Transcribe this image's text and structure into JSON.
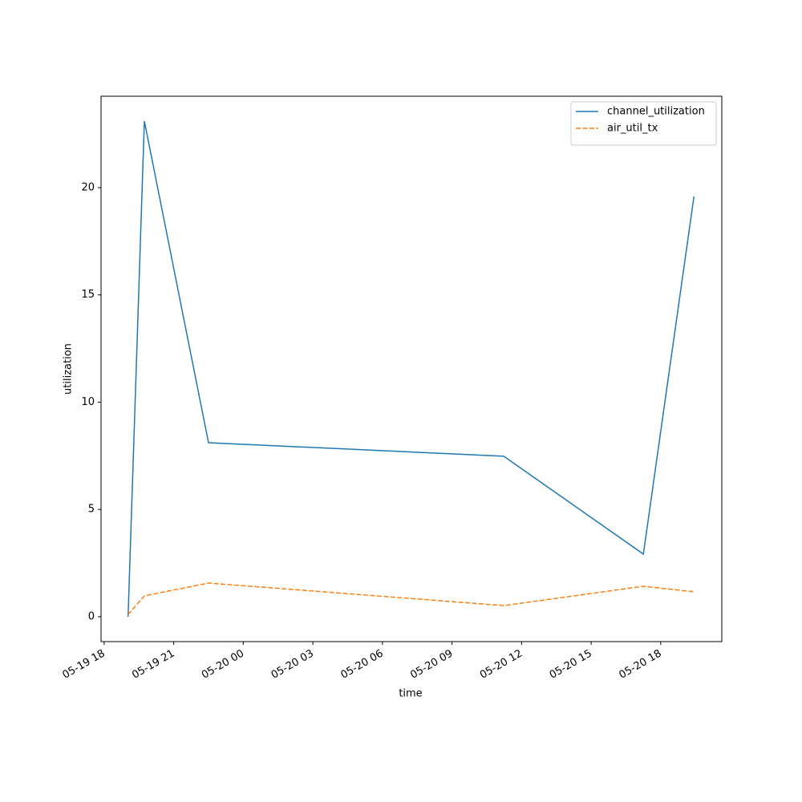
{
  "chart_data": {
    "type": "line",
    "x": [
      "05-19 19:02",
      "05-19 19:44",
      "05-19 22:30",
      "05-20 11:14",
      "05-20 17:15",
      "05-20 19:26"
    ],
    "series": [
      {
        "name": "channel_utilization",
        "color": "#1f77b4",
        "dash": "solid",
        "values": [
          0,
          23.1,
          8.11,
          7.48,
          2.92,
          19.59
        ]
      },
      {
        "name": "air_util_tx",
        "color": "#ff7f0e",
        "dash": "dashed",
        "values": [
          0.1,
          0.97,
          1.57,
          0.52,
          1.42,
          1.16
        ]
      }
    ],
    "xlabel": "time",
    "ylabel": "utilization",
    "xlim": [
      "05-19 17:52",
      "05-20 20:38"
    ],
    "xticks": [
      "05-19 18",
      "05-19 21",
      "05-20 00",
      "05-20 03",
      "05-20 06",
      "05-20 09",
      "05-20 12",
      "05-20 15",
      "05-20 18"
    ],
    "ylim": [
      -1.16,
      24.26
    ],
    "yticks": [
      0,
      5,
      10,
      15,
      20
    ],
    "legend": "upper right"
  }
}
